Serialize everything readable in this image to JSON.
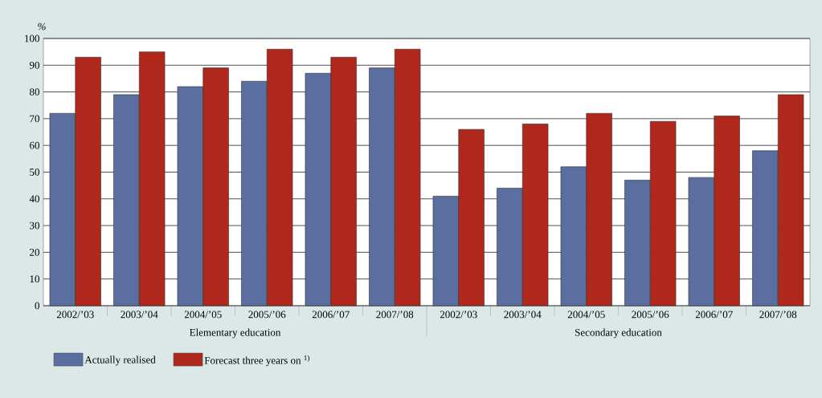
{
  "chart_data": {
    "type": "bar",
    "ylabel": "%",
    "categories": [
      "2002/’03",
      "2003/’04",
      "2004/’05",
      "2005/’06",
      "2006/’07",
      "2007/’08",
      "2002/’03",
      "2003/’04",
      "2004/’05",
      "2005/’06",
      "2006/’07",
      "2007/’08"
    ],
    "series": [
      {
        "name": "Actually realised",
        "color": "#5a6fa0",
        "values": [
          72,
          79,
          82,
          84,
          87,
          89,
          41,
          44,
          52,
          47,
          48,
          58
        ]
      },
      {
        "name": "Forecast three years on $^{1)}$",
        "color": "#b0271c",
        "values": [
          93,
          95,
          89,
          96,
          93,
          96,
          66,
          68,
          72,
          69,
          71,
          79
        ]
      }
    ],
    "ylim": [
      0,
      100
    ],
    "yticks": [
      0,
      10,
      20,
      30,
      40,
      50,
      60,
      70,
      80,
      90,
      100
    ],
    "grid": "y",
    "legend": "bottom",
    "annotations": [
      "Elementary education",
      "Secondary education"
    ]
  }
}
